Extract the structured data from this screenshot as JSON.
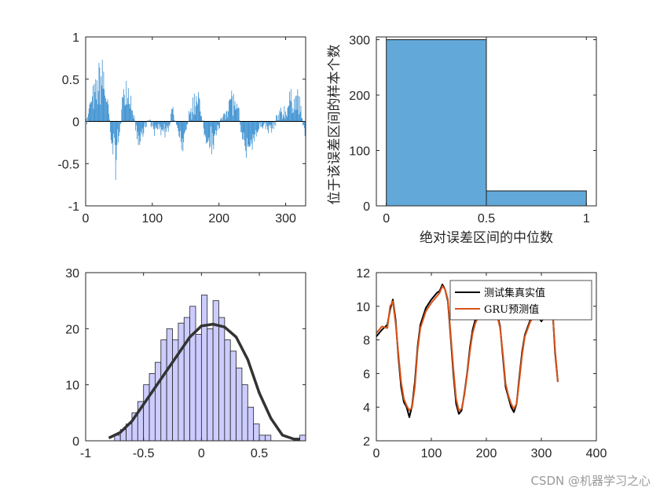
{
  "watermark": "CSDN @机器学习之心",
  "chart_data": [
    {
      "id": "error-stem",
      "type": "bar",
      "description_of_marks": "stem bars of prediction error per test sample",
      "xlim": [
        0,
        330
      ],
      "ylim": [
        -1,
        1
      ],
      "xticks": [
        0,
        100,
        200,
        300
      ],
      "yticks": [
        -1,
        -0.5,
        0,
        0.5,
        1
      ],
      "n_samples": 330,
      "envelope": {
        "x": [
          0,
          8,
          15,
          20,
          25,
          30,
          35,
          40,
          45,
          50,
          55,
          60,
          65,
          70,
          75,
          80,
          85,
          90,
          95,
          100,
          110,
          120,
          130,
          140,
          145,
          150,
          160,
          170,
          180,
          190,
          200,
          210,
          220,
          230,
          235,
          240,
          250,
          260,
          270,
          280,
          290,
          300,
          310,
          320,
          330
        ],
        "y": [
          -0.1,
          0.3,
          0.4,
          0.6,
          0.7,
          0.45,
          0.1,
          -0.4,
          -0.55,
          -0.2,
          0.3,
          0.5,
          0.45,
          0.2,
          -0.1,
          -0.3,
          -0.15,
          -0.05,
          0.05,
          -0.1,
          -0.1,
          -0.2,
          0.15,
          -0.2,
          -0.35,
          -0.1,
          0.25,
          0.3,
          -0.2,
          -0.3,
          -0.1,
          0.2,
          0.35,
          0.1,
          -0.2,
          -0.45,
          -0.3,
          -0.1,
          -0.05,
          -0.1,
          0.1,
          0.15,
          0.35,
          0.3,
          -0.2
        ]
      }
    },
    {
      "id": "abs-error-hist",
      "type": "bar",
      "categories": [
        "0-0.5",
        "0.5-1"
      ],
      "bin_edges": [
        0,
        0.5,
        1
      ],
      "values": [
        300,
        27
      ],
      "xlabel": "绝对误差区间的中位数",
      "ylabel": "位于该误差区间的样本个数",
      "xlim": [
        -0.05,
        1.05
      ],
      "ylim": [
        0,
        305
      ],
      "xticks": [
        0,
        0.5,
        1
      ],
      "yticks": [
        0,
        100,
        200,
        300
      ],
      "color": "#62a9d9"
    },
    {
      "id": "error-hist-fit",
      "type": "bar",
      "bin_start": -0.8,
      "bin_width": 0.05,
      "values": [
        0,
        1,
        2,
        3,
        5,
        7,
        10,
        12,
        14,
        18,
        20,
        18,
        21,
        22,
        24,
        19,
        26,
        20,
        25,
        22,
        18,
        16,
        13,
        10,
        6,
        3,
        1,
        1,
        0,
        0,
        0,
        0,
        0,
        1
      ],
      "fit_line": {
        "x": [
          -0.8,
          -0.7,
          -0.6,
          -0.5,
          -0.4,
          -0.3,
          -0.2,
          -0.1,
          0,
          0.1,
          0.2,
          0.3,
          0.4,
          0.5,
          0.6,
          0.7,
          0.8,
          0.85
        ],
        "y": [
          0.5,
          1.5,
          3.5,
          6.5,
          9.5,
          12.5,
          15.5,
          18.5,
          20.5,
          20.8,
          20.3,
          18.5,
          14.5,
          8.5,
          4.0,
          1.0,
          0.3,
          0.3
        ]
      },
      "xlim": [
        -1,
        0.9
      ],
      "ylim": [
        0,
        30
      ],
      "xticks": [
        -1,
        -0.5,
        0,
        0.5
      ],
      "yticks": [
        0,
        10,
        20,
        30
      ],
      "bar_color": "#ccccff",
      "line_color": "#333333"
    },
    {
      "id": "prediction-lines",
      "type": "line",
      "xlim": [
        0,
        400
      ],
      "ylim": [
        2,
        12
      ],
      "xticks": [
        0,
        100,
        200,
        300,
        400
      ],
      "yticks": [
        2,
        4,
        6,
        8,
        10,
        12
      ],
      "legend_position": "top-right",
      "series": [
        {
          "name": "测试集真实值",
          "color": "#000000",
          "x": [
            0,
            10,
            20,
            25,
            30,
            35,
            40,
            45,
            50,
            55,
            60,
            65,
            70,
            75,
            80,
            90,
            100,
            110,
            115,
            120,
            125,
            130,
            135,
            140,
            145,
            150,
            155,
            160,
            165,
            170,
            175,
            180,
            190,
            200,
            205,
            210,
            220,
            225,
            230,
            235,
            240,
            245,
            250,
            255,
            260,
            265,
            270,
            280,
            290,
            300,
            310,
            320,
            325,
            330
          ],
          "y": [
            8.2,
            8.6,
            8.9,
            9.8,
            10.4,
            9.2,
            7.0,
            5.2,
            4.3,
            4.0,
            3.4,
            4.1,
            5.5,
            7.6,
            8.9,
            9.9,
            10.4,
            10.8,
            10.9,
            11.3,
            11.0,
            10.3,
            8.2,
            6.0,
            4.2,
            3.6,
            3.8,
            4.8,
            6.0,
            7.5,
            8.6,
            9.2,
            9.8,
            10.2,
            10.1,
            9.9,
            9.5,
            8.8,
            7.0,
            5.2,
            4.6,
            4.0,
            3.7,
            4.2,
            5.8,
            7.3,
            8.3,
            9.2,
            9.6,
            9.1,
            9.6,
            10.0,
            7.2,
            5.5
          ]
        },
        {
          "name": "GRU预测值",
          "color": "#d95319",
          "x": [
            0,
            10,
            20,
            25,
            30,
            35,
            40,
            45,
            50,
            55,
            60,
            65,
            70,
            75,
            80,
            90,
            100,
            110,
            115,
            120,
            125,
            130,
            135,
            140,
            145,
            150,
            155,
            160,
            165,
            170,
            175,
            180,
            190,
            200,
            205,
            210,
            220,
            225,
            230,
            235,
            240,
            245,
            250,
            255,
            260,
            265,
            270,
            280,
            290,
            300,
            310,
            320,
            325,
            330
          ],
          "y": [
            8.4,
            8.8,
            8.7,
            10.0,
            10.3,
            9.0,
            7.2,
            5.5,
            4.5,
            4.1,
            3.8,
            4.0,
            5.2,
            7.4,
            8.7,
            9.7,
            10.2,
            10.6,
            10.8,
            11.2,
            11.0,
            10.4,
            8.4,
            6.3,
            4.5,
            3.8,
            3.9,
            4.7,
            5.9,
            7.3,
            8.4,
            9.0,
            9.7,
            10.0,
            10.1,
            9.8,
            9.4,
            8.7,
            7.2,
            5.4,
            4.7,
            4.2,
            3.9,
            4.2,
            5.6,
            7.1,
            8.2,
            9.1,
            9.5,
            9.2,
            9.5,
            9.9,
            7.4,
            5.5
          ]
        }
      ]
    }
  ]
}
